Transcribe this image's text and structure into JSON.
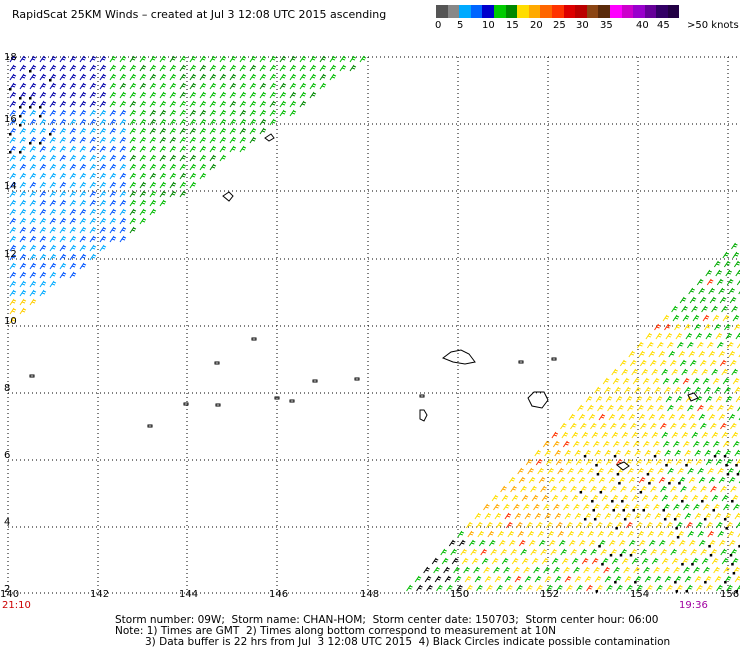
{
  "title": "RapidScat 25KM Winds – created at Jul  3 12:08 UTC 2015 ascending",
  "legend": {
    "colors": [
      "#555555",
      "#888888",
      "#00aaff",
      "#0066ff",
      "#0000cc",
      "#00cc00",
      "#008800",
      "#ffdd00",
      "#ffaa00",
      "#ff6600",
      "#ff3300",
      "#dd0000",
      "#bb0000",
      "#8b4513",
      "#5a2a0a",
      "#ff00ff",
      "#cc00cc",
      "#9900cc",
      "#660099",
      "#330066",
      "#220044"
    ],
    "labels": [
      "0",
      "5",
      "10",
      "15",
      "20",
      "25",
      "30",
      "35",
      "40",
      "45",
      ">50 knots"
    ]
  },
  "axes": {
    "lon_labels": [
      "140",
      "142",
      "144",
      "146",
      "148",
      "150",
      "152",
      "154",
      "156"
    ],
    "lat_labels": [
      "16",
      "14",
      "12",
      "10",
      "8",
      "6",
      "4",
      "2"
    ],
    "top_lat_label": "18"
  },
  "pass_times": {
    "left": "21:10",
    "right": "19:36"
  },
  "footer": {
    "line1": "Storm number: 09W;  Storm name: CHAN-HOM;  Storm center date: 150703;  Storm center hour: 06:00",
    "line2": "Note: 1) Times are GMT  2) Times along bottom correspond to measurement at 10N",
    "line3": "3) Data buffer is 22 hrs from Jul  3 12:08 UTC 2015  4) Black Circles indicate possible contamination"
  }
}
